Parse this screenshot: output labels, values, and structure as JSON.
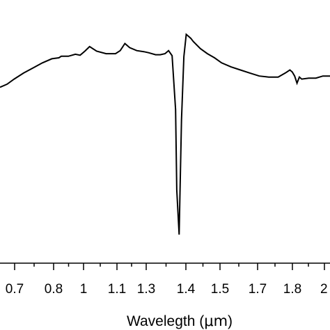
{
  "chart_data": {
    "type": "line",
    "title": "",
    "xlabel_prefix": "Wavelegth (",
    "xlabel_unit": "μm",
    "xlabel_suffix": ")",
    "ylabel": "",
    "xlim": [
      0.62,
      2.02
    ],
    "x_tick_labels": [
      "0.7",
      "0.8",
      "1",
      "1.1",
      "1.3",
      "1.4",
      "1.5",
      "1.7",
      "1.8",
      "2"
    ],
    "grid": false,
    "line_color": "#000000",
    "series": [
      {
        "x": [
          0.62,
          0.65,
          0.68,
          0.72,
          0.76,
          0.8,
          0.84,
          0.87,
          0.88,
          0.91,
          0.94,
          0.96,
          0.98,
          1.0,
          1.03,
          1.07,
          1.09,
          1.11,
          1.13,
          1.15,
          1.17,
          1.2,
          1.23,
          1.25,
          1.28,
          1.3,
          1.32,
          1.335,
          1.35,
          1.365,
          1.37,
          1.38,
          1.39,
          1.4,
          1.41,
          1.42,
          1.43,
          1.44,
          1.47,
          1.5,
          1.53,
          1.56,
          1.6,
          1.64,
          1.68,
          1.72,
          1.76,
          1.8,
          1.83,
          1.85,
          1.86,
          1.87,
          1.88,
          1.89,
          1.9,
          1.93,
          1.96,
          1.99,
          2.02
        ],
        "y": [
          0.45,
          0.48,
          0.53,
          0.59,
          0.64,
          0.69,
          0.73,
          0.74,
          0.755,
          0.755,
          0.775,
          0.765,
          0.805,
          0.85,
          0.805,
          0.78,
          0.78,
          0.78,
          0.81,
          0.88,
          0.84,
          0.81,
          0.8,
          0.79,
          0.77,
          0.77,
          0.78,
          0.81,
          0.76,
          0.23,
          -0.56,
          -1.0,
          0.13,
          0.75,
          0.97,
          0.95,
          0.93,
          0.9,
          0.83,
          0.78,
          0.74,
          0.69,
          0.65,
          0.62,
          0.59,
          0.56,
          0.55,
          0.55,
          0.59,
          0.62,
          0.6,
          0.56,
          0.49,
          0.55,
          0.53,
          0.54,
          0.54,
          0.56,
          0.56
        ]
      }
    ]
  }
}
